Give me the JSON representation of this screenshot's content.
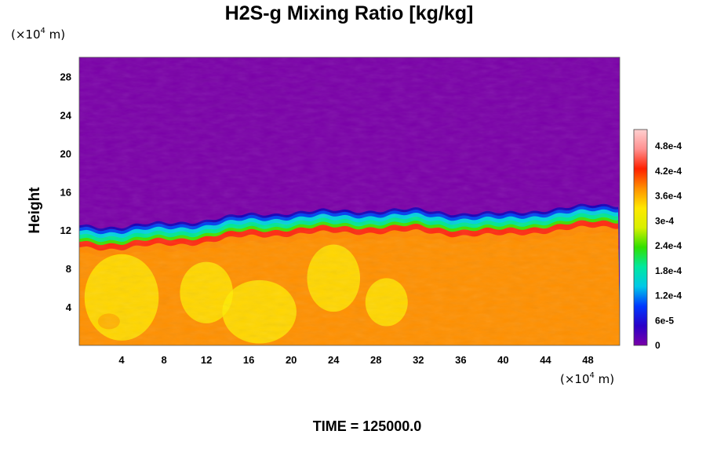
{
  "chart_data": {
    "type": "heatmap",
    "title": "H2S-g Mixing Ratio [kg/kg]",
    "ylabel": "Height",
    "xlabel": "",
    "x_unit": {
      "prefix": "(×10",
      "exp": "4",
      "suffix": " m)"
    },
    "y_unit": {
      "prefix": "(×10",
      "exp": "4",
      "suffix": " m)"
    },
    "xlim": [
      0,
      51
    ],
    "ylim": [
      0,
      30
    ],
    "x_ticks": [
      4,
      8,
      12,
      16,
      20,
      24,
      28,
      32,
      36,
      40,
      44,
      48
    ],
    "y_ticks": [
      4,
      8,
      12,
      16,
      20,
      24,
      28
    ],
    "colorbar": {
      "range": [
        0,
        0.00052
      ],
      "tick_values": [
        0,
        6e-05,
        0.00012,
        0.00018,
        0.00024,
        0.0003,
        0.00036,
        0.00042,
        0.00048
      ],
      "tick_labels": [
        "0",
        "6e-5",
        "1.2e-4",
        "1.8e-4",
        "2.4e-4",
        "3e-4",
        "3.6e-4",
        "4.2e-4",
        "4.8e-4"
      ],
      "colors": [
        "#7a00a8",
        "#2a00c8",
        "#0038ff",
        "#00c8e8",
        "#00e8a0",
        "#30e000",
        "#d8f000",
        "#ffe800",
        "#ff9000",
        "#ff2000",
        "#ff9090",
        "#ffd0d0"
      ]
    },
    "field": {
      "upper_value": 0.0,
      "lower_value": 0.00036,
      "boundary_height_samples": [
        {
          "x": 0,
          "y": 12.0
        },
        {
          "x": 4,
          "y": 11.9
        },
        {
          "x": 8,
          "y": 12.2
        },
        {
          "x": 12,
          "y": 12.6
        },
        {
          "x": 16,
          "y": 13.1
        },
        {
          "x": 20,
          "y": 13.4
        },
        {
          "x": 24,
          "y": 13.5
        },
        {
          "x": 28,
          "y": 13.6
        },
        {
          "x": 32,
          "y": 13.6
        },
        {
          "x": 36,
          "y": 13.3
        },
        {
          "x": 40,
          "y": 13.2
        },
        {
          "x": 44,
          "y": 13.7
        },
        {
          "x": 48,
          "y": 14.0
        },
        {
          "x": 51,
          "y": 14.2
        }
      ]
    }
  },
  "footer": {
    "time_label": "TIME = 125000.0"
  }
}
